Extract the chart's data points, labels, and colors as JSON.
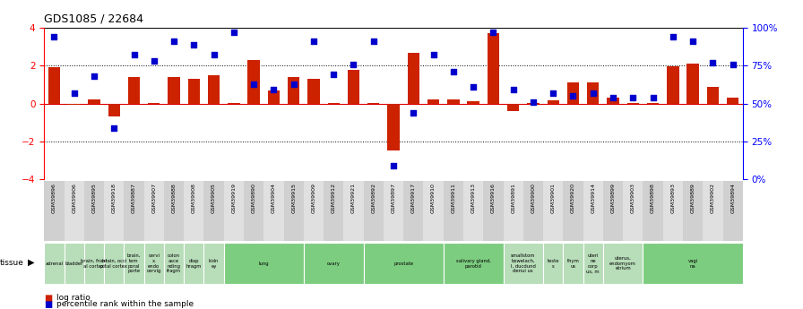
{
  "title": "GDS1085 / 22684",
  "samples": [
    "GSM39896",
    "GSM39906",
    "GSM39895",
    "GSM39918",
    "GSM39887",
    "GSM39907",
    "GSM39888",
    "GSM39908",
    "GSM39905",
    "GSM39919",
    "GSM39890",
    "GSM39904",
    "GSM39915",
    "GSM39909",
    "GSM39912",
    "GSM39921",
    "GSM39892",
    "GSM39897",
    "GSM39917",
    "GSM39910",
    "GSM39911",
    "GSM39913",
    "GSM39916",
    "GSM39891",
    "GSM39900",
    "GSM39901",
    "GSM39920",
    "GSM39914",
    "GSM39899",
    "GSM39903",
    "GSM39898",
    "GSM39893",
    "GSM39889",
    "GSM39902",
    "GSM39894"
  ],
  "log_ratio": [
    1.9,
    -0.05,
    0.2,
    -0.7,
    1.4,
    0.05,
    1.4,
    1.3,
    1.5,
    0.05,
    2.3,
    0.7,
    1.4,
    1.3,
    0.05,
    1.8,
    0.05,
    -2.5,
    2.7,
    0.2,
    0.2,
    0.1,
    3.7,
    -0.4,
    0.05,
    0.15,
    1.1,
    1.1,
    0.3,
    0.05,
    0.05,
    1.95,
    2.1,
    0.9,
    0.3
  ],
  "percentile_rank_pct": [
    94,
    57,
    68,
    34,
    82,
    78,
    91,
    89,
    82,
    97,
    63,
    59,
    63,
    91,
    69,
    76,
    91,
    9,
    44,
    82,
    71,
    61,
    97,
    59,
    51,
    57,
    55,
    57,
    54,
    54,
    54,
    94,
    91,
    77,
    76
  ],
  "tissue_groups": [
    {
      "label": "adrenal",
      "start": 0,
      "end": 1,
      "color": "#b8ddb9"
    },
    {
      "label": "bladder",
      "start": 1,
      "end": 2,
      "color": "#b8ddb9"
    },
    {
      "label": "brain, front\nal cortex",
      "start": 2,
      "end": 3,
      "color": "#b8ddb9"
    },
    {
      "label": "brain, occi\npital cortex",
      "start": 3,
      "end": 4,
      "color": "#b8ddb9"
    },
    {
      "label": "brain,\ntem\nporal\nporte",
      "start": 4,
      "end": 5,
      "color": "#b8ddb9"
    },
    {
      "label": "cervi\nx,\nendo\ncervig",
      "start": 5,
      "end": 6,
      "color": "#b8ddb9"
    },
    {
      "label": "colon\nasce\nnding\nfragm",
      "start": 6,
      "end": 7,
      "color": "#b8ddb9"
    },
    {
      "label": "diap\nhragm",
      "start": 7,
      "end": 8,
      "color": "#b8ddb9"
    },
    {
      "label": "kidn\ney",
      "start": 8,
      "end": 9,
      "color": "#b8ddb9"
    },
    {
      "label": "lung",
      "start": 9,
      "end": 13,
      "color": "#7dcd80"
    },
    {
      "label": "ovary",
      "start": 13,
      "end": 16,
      "color": "#7dcd80"
    },
    {
      "label": "prostate",
      "start": 16,
      "end": 20,
      "color": "#7dcd80"
    },
    {
      "label": "salivary gland,\nparotid",
      "start": 20,
      "end": 23,
      "color": "#7dcd80"
    },
    {
      "label": "smallstom\nbowelach,\nl, ducdund\ndenui us",
      "start": 23,
      "end": 25,
      "color": "#b8ddb9"
    },
    {
      "label": "teste\ns",
      "start": 25,
      "end": 26,
      "color": "#b8ddb9"
    },
    {
      "label": "thym\nus",
      "start": 26,
      "end": 27,
      "color": "#b8ddb9"
    },
    {
      "label": "uteri\nne\ncorp\nus, m",
      "start": 27,
      "end": 28,
      "color": "#b8ddb9"
    },
    {
      "label": "uterus,\nendomyom\netrium",
      "start": 28,
      "end": 30,
      "color": "#b8ddb9"
    },
    {
      "label": "vagi\nna",
      "start": 30,
      "end": 35,
      "color": "#7dcd80"
    }
  ],
  "bar_color": "#cc2200",
  "dot_color": "#0000cc",
  "ylim": [
    -4,
    4
  ],
  "yticks": [
    -4,
    -2,
    0,
    2,
    4
  ],
  "y2ticks": [
    0,
    25,
    50,
    75,
    100
  ],
  "bg_color": "#ffffff"
}
